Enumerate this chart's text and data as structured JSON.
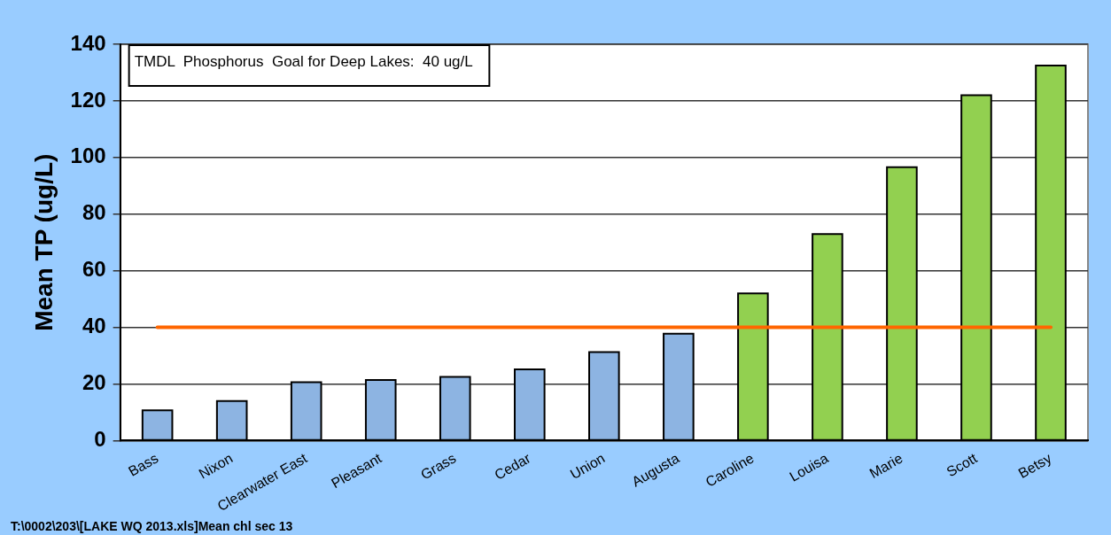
{
  "chart_data": {
    "type": "bar",
    "ylabel": "Mean TP (ug/L)",
    "categories": [
      "Bass",
      "Nixon",
      "Clearwater East",
      "Pleasant",
      "Grass",
      "Cedar",
      "Union",
      "Augusta",
      "Caroline",
      "Louisa",
      "Marie",
      "Scott",
      "Betsy"
    ],
    "values": [
      10.7,
      14,
      20.6,
      21.4,
      22.5,
      25.2,
      31.3,
      37.8,
      52,
      73,
      96.6,
      122,
      132.5
    ],
    "colors": [
      "#8db4e2",
      "#8db4e2",
      "#8db4e2",
      "#8db4e2",
      "#8db4e2",
      "#8db4e2",
      "#8db4e2",
      "#8db4e2",
      "#92d050",
      "#92d050",
      "#92d050",
      "#92d050",
      "#92d050"
    ],
    "ylim": [
      0,
      140
    ],
    "yticks": [
      0,
      20,
      40,
      60,
      80,
      100,
      120,
      140
    ],
    "grid": "y",
    "legend": false,
    "ref_lines": [
      {
        "axis": "y",
        "value": 40,
        "color": "#ff6600"
      }
    ],
    "annotations": [
      "TMDL  Phosphorus  Goal for Deep Lakes:  40 ug/L",
      "T:\\0002\\203\\[LAKE  WQ  2013.xls]Mean chl  sec  13"
    ]
  }
}
